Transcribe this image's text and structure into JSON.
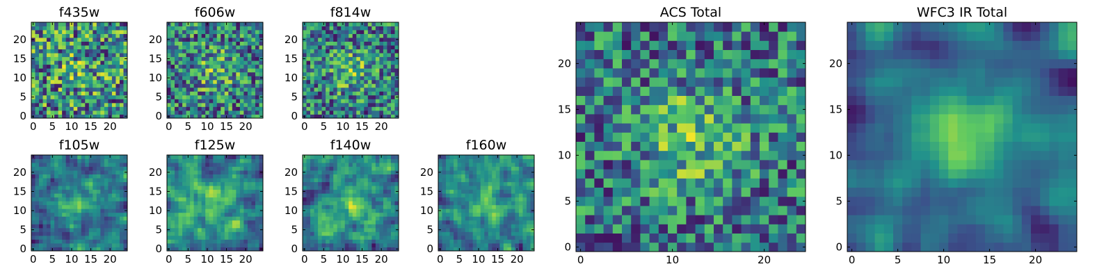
{
  "chart_data": [
    {
      "type": "heatmap",
      "title": "f435w",
      "x_ticks": [
        0,
        5,
        10,
        15,
        20
      ],
      "y_ticks": [
        0,
        5,
        10,
        15,
        20
      ],
      "grid_size": 25,
      "seed": 11,
      "smooth": 0,
      "center_boost": 0.12,
      "grid": false
    },
    {
      "type": "heatmap",
      "title": "f606w",
      "x_ticks": [
        0,
        5,
        10,
        15,
        20
      ],
      "y_ticks": [
        0,
        5,
        10,
        15,
        20
      ],
      "grid_size": 25,
      "seed": 23,
      "smooth": 0,
      "center_boost": 0.22,
      "grid": false
    },
    {
      "type": "heatmap",
      "title": "f814w",
      "x_ticks": [
        0,
        5,
        10,
        15,
        20
      ],
      "y_ticks": [
        0,
        5,
        10,
        15,
        20
      ],
      "grid_size": 25,
      "seed": 37,
      "smooth": 0,
      "center_boost": 0.25,
      "grid": false
    },
    {
      "type": "heatmap",
      "title": "f105w",
      "x_ticks": [
        0,
        5,
        10,
        15,
        20
      ],
      "y_ticks": [
        0,
        5,
        10,
        15,
        20
      ],
      "grid_size": 25,
      "seed": 41,
      "smooth": 1,
      "center_boost": 0.3,
      "grid": false
    },
    {
      "type": "heatmap",
      "title": "f125w",
      "x_ticks": [
        0,
        5,
        10,
        15,
        20
      ],
      "y_ticks": [
        0,
        5,
        10,
        15,
        20
      ],
      "grid_size": 25,
      "seed": 53,
      "smooth": 1,
      "center_boost": 0.22,
      "grid": false
    },
    {
      "type": "heatmap",
      "title": "f140w",
      "x_ticks": [
        0,
        5,
        10,
        15,
        20
      ],
      "y_ticks": [
        0,
        5,
        10,
        15,
        20
      ],
      "grid_size": 25,
      "seed": 67,
      "smooth": 1,
      "center_boost": 0.25,
      "grid": false
    },
    {
      "type": "heatmap",
      "title": "f160w",
      "x_ticks": [
        0,
        5,
        10,
        15,
        20
      ],
      "y_ticks": [
        0,
        5,
        10,
        15,
        20
      ],
      "grid_size": 25,
      "seed": 79,
      "smooth": 1,
      "center_boost": 0.28,
      "grid": false
    },
    {
      "type": "heatmap",
      "title": "ACS Total",
      "x_ticks": [
        0,
        10,
        20
      ],
      "y_ticks": [
        0,
        5,
        10,
        15,
        20
      ],
      "grid_size": 25,
      "seed": 97,
      "smooth": 0,
      "center_boost": 0.3,
      "grid": false
    },
    {
      "type": "heatmap",
      "title": "WFC3 IR Total",
      "x_ticks": [
        0,
        5,
        10,
        15,
        20
      ],
      "y_ticks": [
        0,
        5,
        10,
        15,
        20
      ],
      "grid_size": 25,
      "seed": 113,
      "smooth": 2,
      "center_boost": 0.4,
      "grid": false
    }
  ],
  "colormap": [
    "#440154",
    "#3b528b",
    "#21918c",
    "#5ec962",
    "#fde725"
  ]
}
